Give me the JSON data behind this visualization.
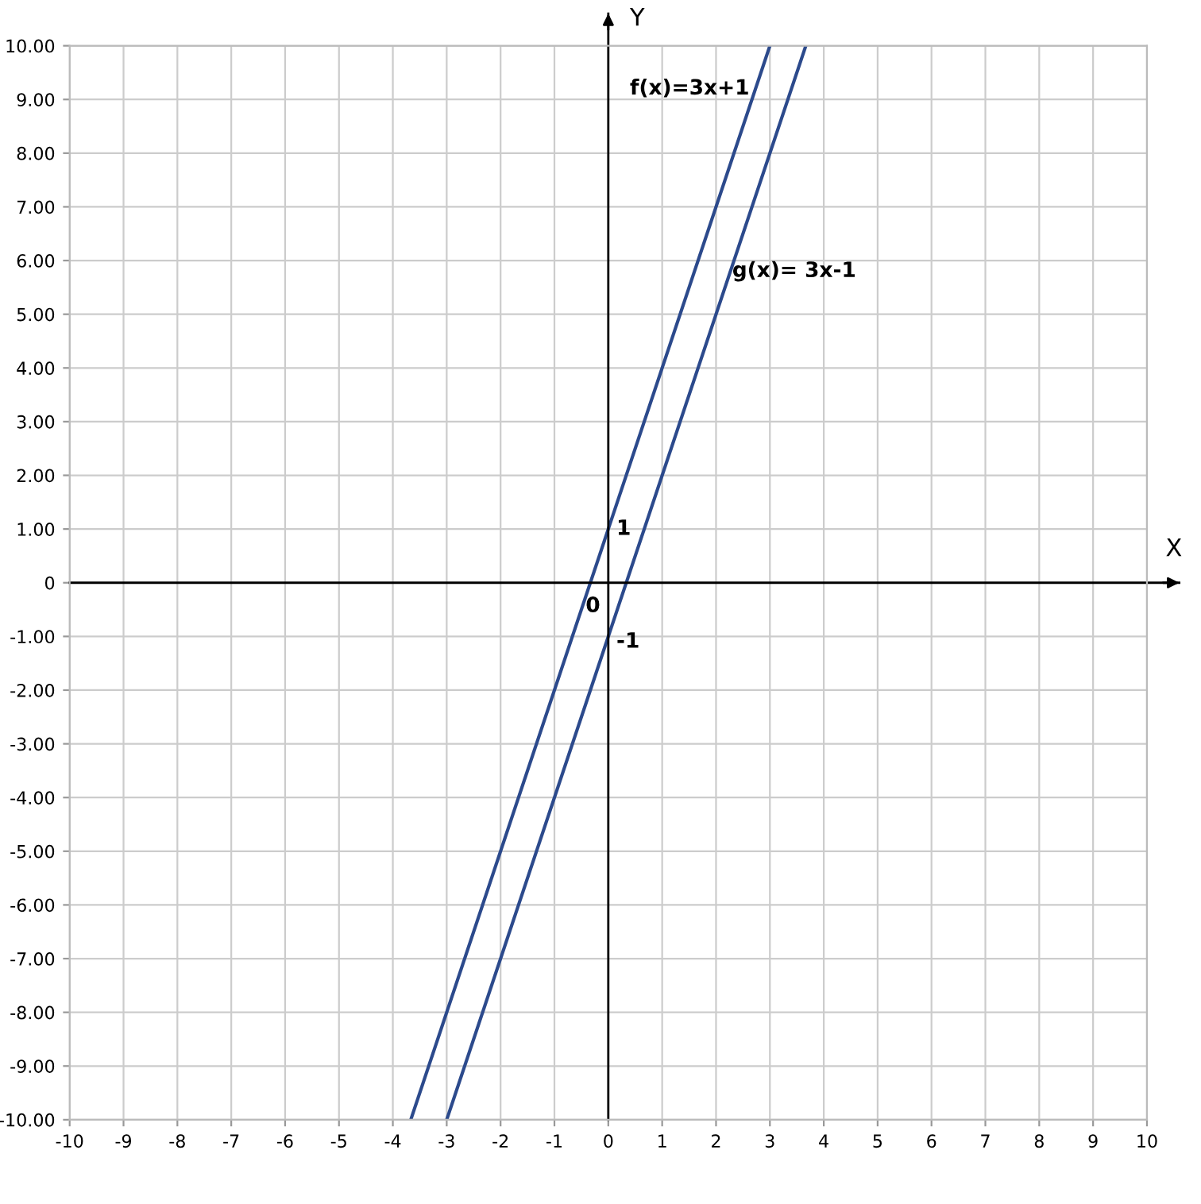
{
  "chart_data": {
    "type": "line",
    "xlabel": "X",
    "ylabel": "Y",
    "series": [
      {
        "color": "#2c4a8c",
        "x": [
          -3.667,
          3.0
        ],
        "values": [
          -10,
          10
        ]
      },
      {
        "color": "#2c4a8c",
        "x": [
          -3.0,
          3.667
        ],
        "values": [
          -10,
          10
        ]
      }
    ],
    "xlim": [
      -10,
      10
    ],
    "ylim": [
      -10,
      10
    ],
    "xticks": [
      -10,
      -9,
      -8,
      -7,
      -6,
      -5,
      -4,
      -3,
      -2,
      -1,
      0,
      1,
      2,
      3,
      4,
      5,
      6,
      7,
      8,
      9,
      10
    ],
    "yticks": [
      {
        "value": -10,
        "label": "-10.00"
      },
      {
        "value": -9,
        "label": "-9.00"
      },
      {
        "value": -8,
        "label": "-8.00"
      },
      {
        "value": -7,
        "label": "-7.00"
      },
      {
        "value": -6,
        "label": "-6.00"
      },
      {
        "value": -5,
        "label": "-5.00"
      },
      {
        "value": -4,
        "label": "-4.00"
      },
      {
        "value": -3,
        "label": "-3.00"
      },
      {
        "value": -2,
        "label": "-2.00"
      },
      {
        "value": -1,
        "label": "-1.00"
      },
      {
        "value": 0,
        "label": "0"
      },
      {
        "value": 1,
        "label": "1.00"
      },
      {
        "value": 2,
        "label": "2.00"
      },
      {
        "value": 3,
        "label": "3.00"
      },
      {
        "value": 4,
        "label": "4.00"
      },
      {
        "value": 5,
        "label": "5.00"
      },
      {
        "value": 6,
        "label": "6.00"
      },
      {
        "value": 7,
        "label": "7.00"
      },
      {
        "value": 8,
        "label": "8.00"
      },
      {
        "value": 9,
        "label": "9.00"
      },
      {
        "value": 10,
        "label": "10.00"
      }
    ],
    "grid": true,
    "annotations": [
      {
        "text": "f(x)=3x+1",
        "x": 3.0,
        "y": 10
      },
      {
        "text": "g(x)= 3x-1",
        "x": 2.0,
        "y": 5
      },
      {
        "text": "1",
        "x": 0,
        "y": 1
      },
      "0",
      {
        "text": "-1",
        "x": 0,
        "y": -1
      }
    ]
  }
}
